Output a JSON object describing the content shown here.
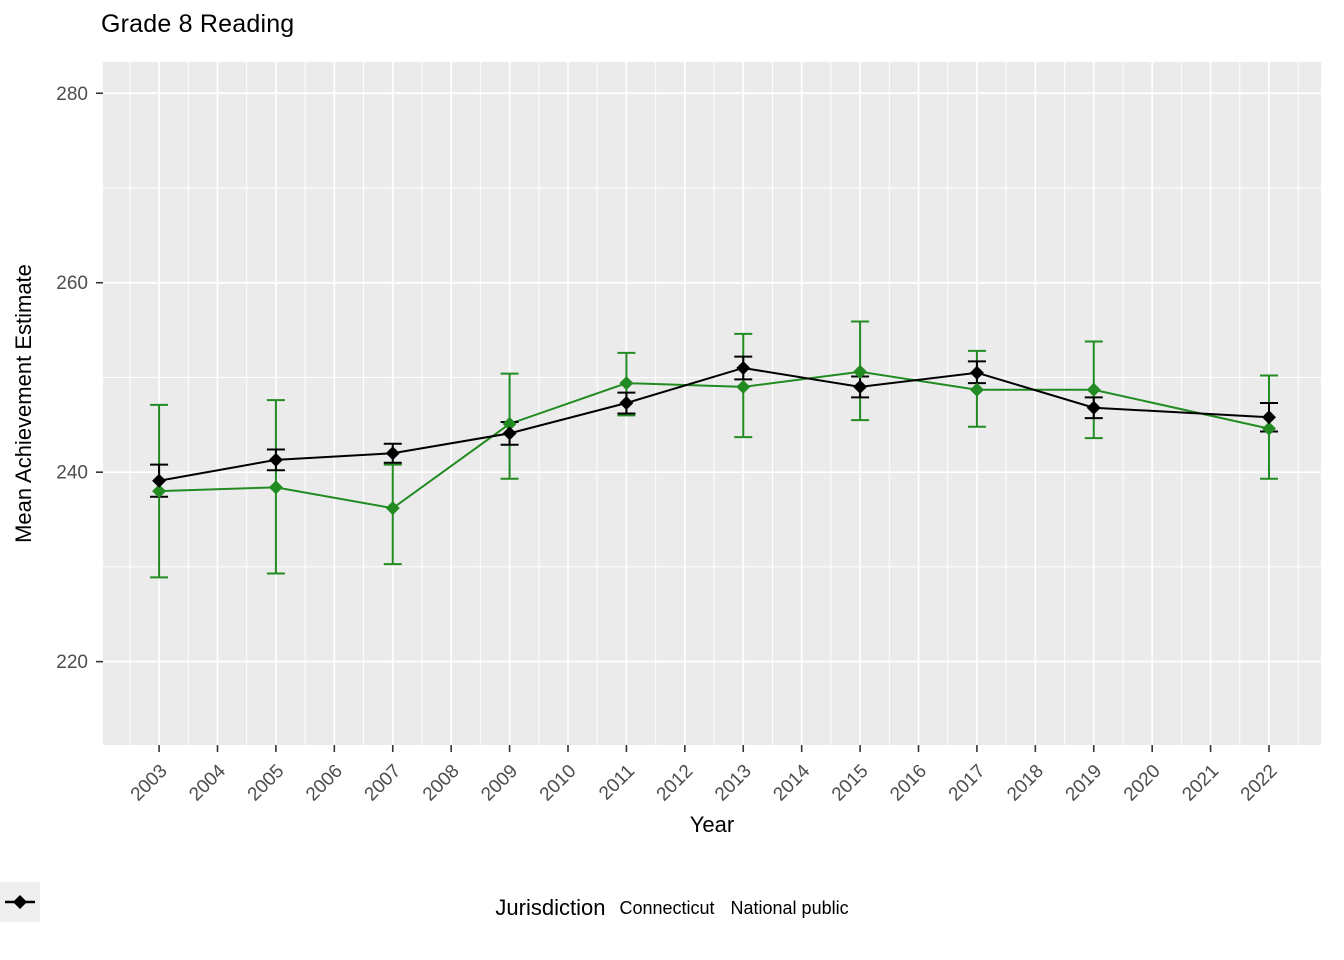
{
  "title": "Grade 8 Reading",
  "chart_data": {
    "type": "line",
    "title": "Grade 8 Reading",
    "xlabel": "Year",
    "ylabel": "Mean Achievement Estimate",
    "x": [
      2003,
      2005,
      2007,
      2009,
      2011,
      2013,
      2015,
      2017,
      2019,
      2022
    ],
    "series": [
      {
        "name": "Connecticut",
        "color": "#228B22",
        "values": [
          238.0,
          238.4,
          236.2,
          245.1,
          249.4,
          249.0,
          250.6,
          248.7,
          248.7,
          244.6
        ],
        "err_lo": [
          228.9,
          229.3,
          230.3,
          239.3,
          246.0,
          243.7,
          245.5,
          244.8,
          243.6,
          239.3
        ],
        "err_hi": [
          247.1,
          247.6,
          240.8,
          250.4,
          252.6,
          254.6,
          255.9,
          252.8,
          253.8,
          250.2
        ]
      },
      {
        "name": "National public",
        "color": "#000000",
        "values": [
          239.1,
          241.3,
          242.0,
          244.1,
          247.3,
          251.0,
          249.0,
          250.5,
          246.8,
          245.8
        ],
        "err_lo": [
          237.4,
          240.2,
          241.0,
          242.9,
          246.2,
          249.8,
          247.9,
          249.4,
          245.7,
          244.3
        ],
        "err_hi": [
          240.8,
          242.4,
          243.0,
          245.3,
          248.4,
          252.2,
          250.1,
          251.7,
          247.9,
          247.3
        ]
      }
    ],
    "x_ticks": [
      2003,
      2004,
      2005,
      2006,
      2007,
      2008,
      2009,
      2010,
      2011,
      2012,
      2013,
      2014,
      2015,
      2016,
      2017,
      2018,
      2019,
      2020,
      2021,
      2022
    ],
    "y_ticks": [
      220,
      240,
      260,
      280
    ],
    "y_minor_ticks": [
      230,
      250,
      270
    ],
    "xlim": [
      2002.04,
      2022.89
    ],
    "ylim": [
      211.2,
      283.3
    ],
    "grid": true,
    "marker": "diamond",
    "legend_title": "Jurisdiction",
    "legend_position": "bottom"
  },
  "colors": {
    "panel_bg": "#EBEBEB",
    "grid": "#FFFFFF",
    "tick_label": "#4D4D4D",
    "tick_mark": "#333333",
    "axis_title": "#000000",
    "legend_key_bg": "#EFEFEF"
  }
}
